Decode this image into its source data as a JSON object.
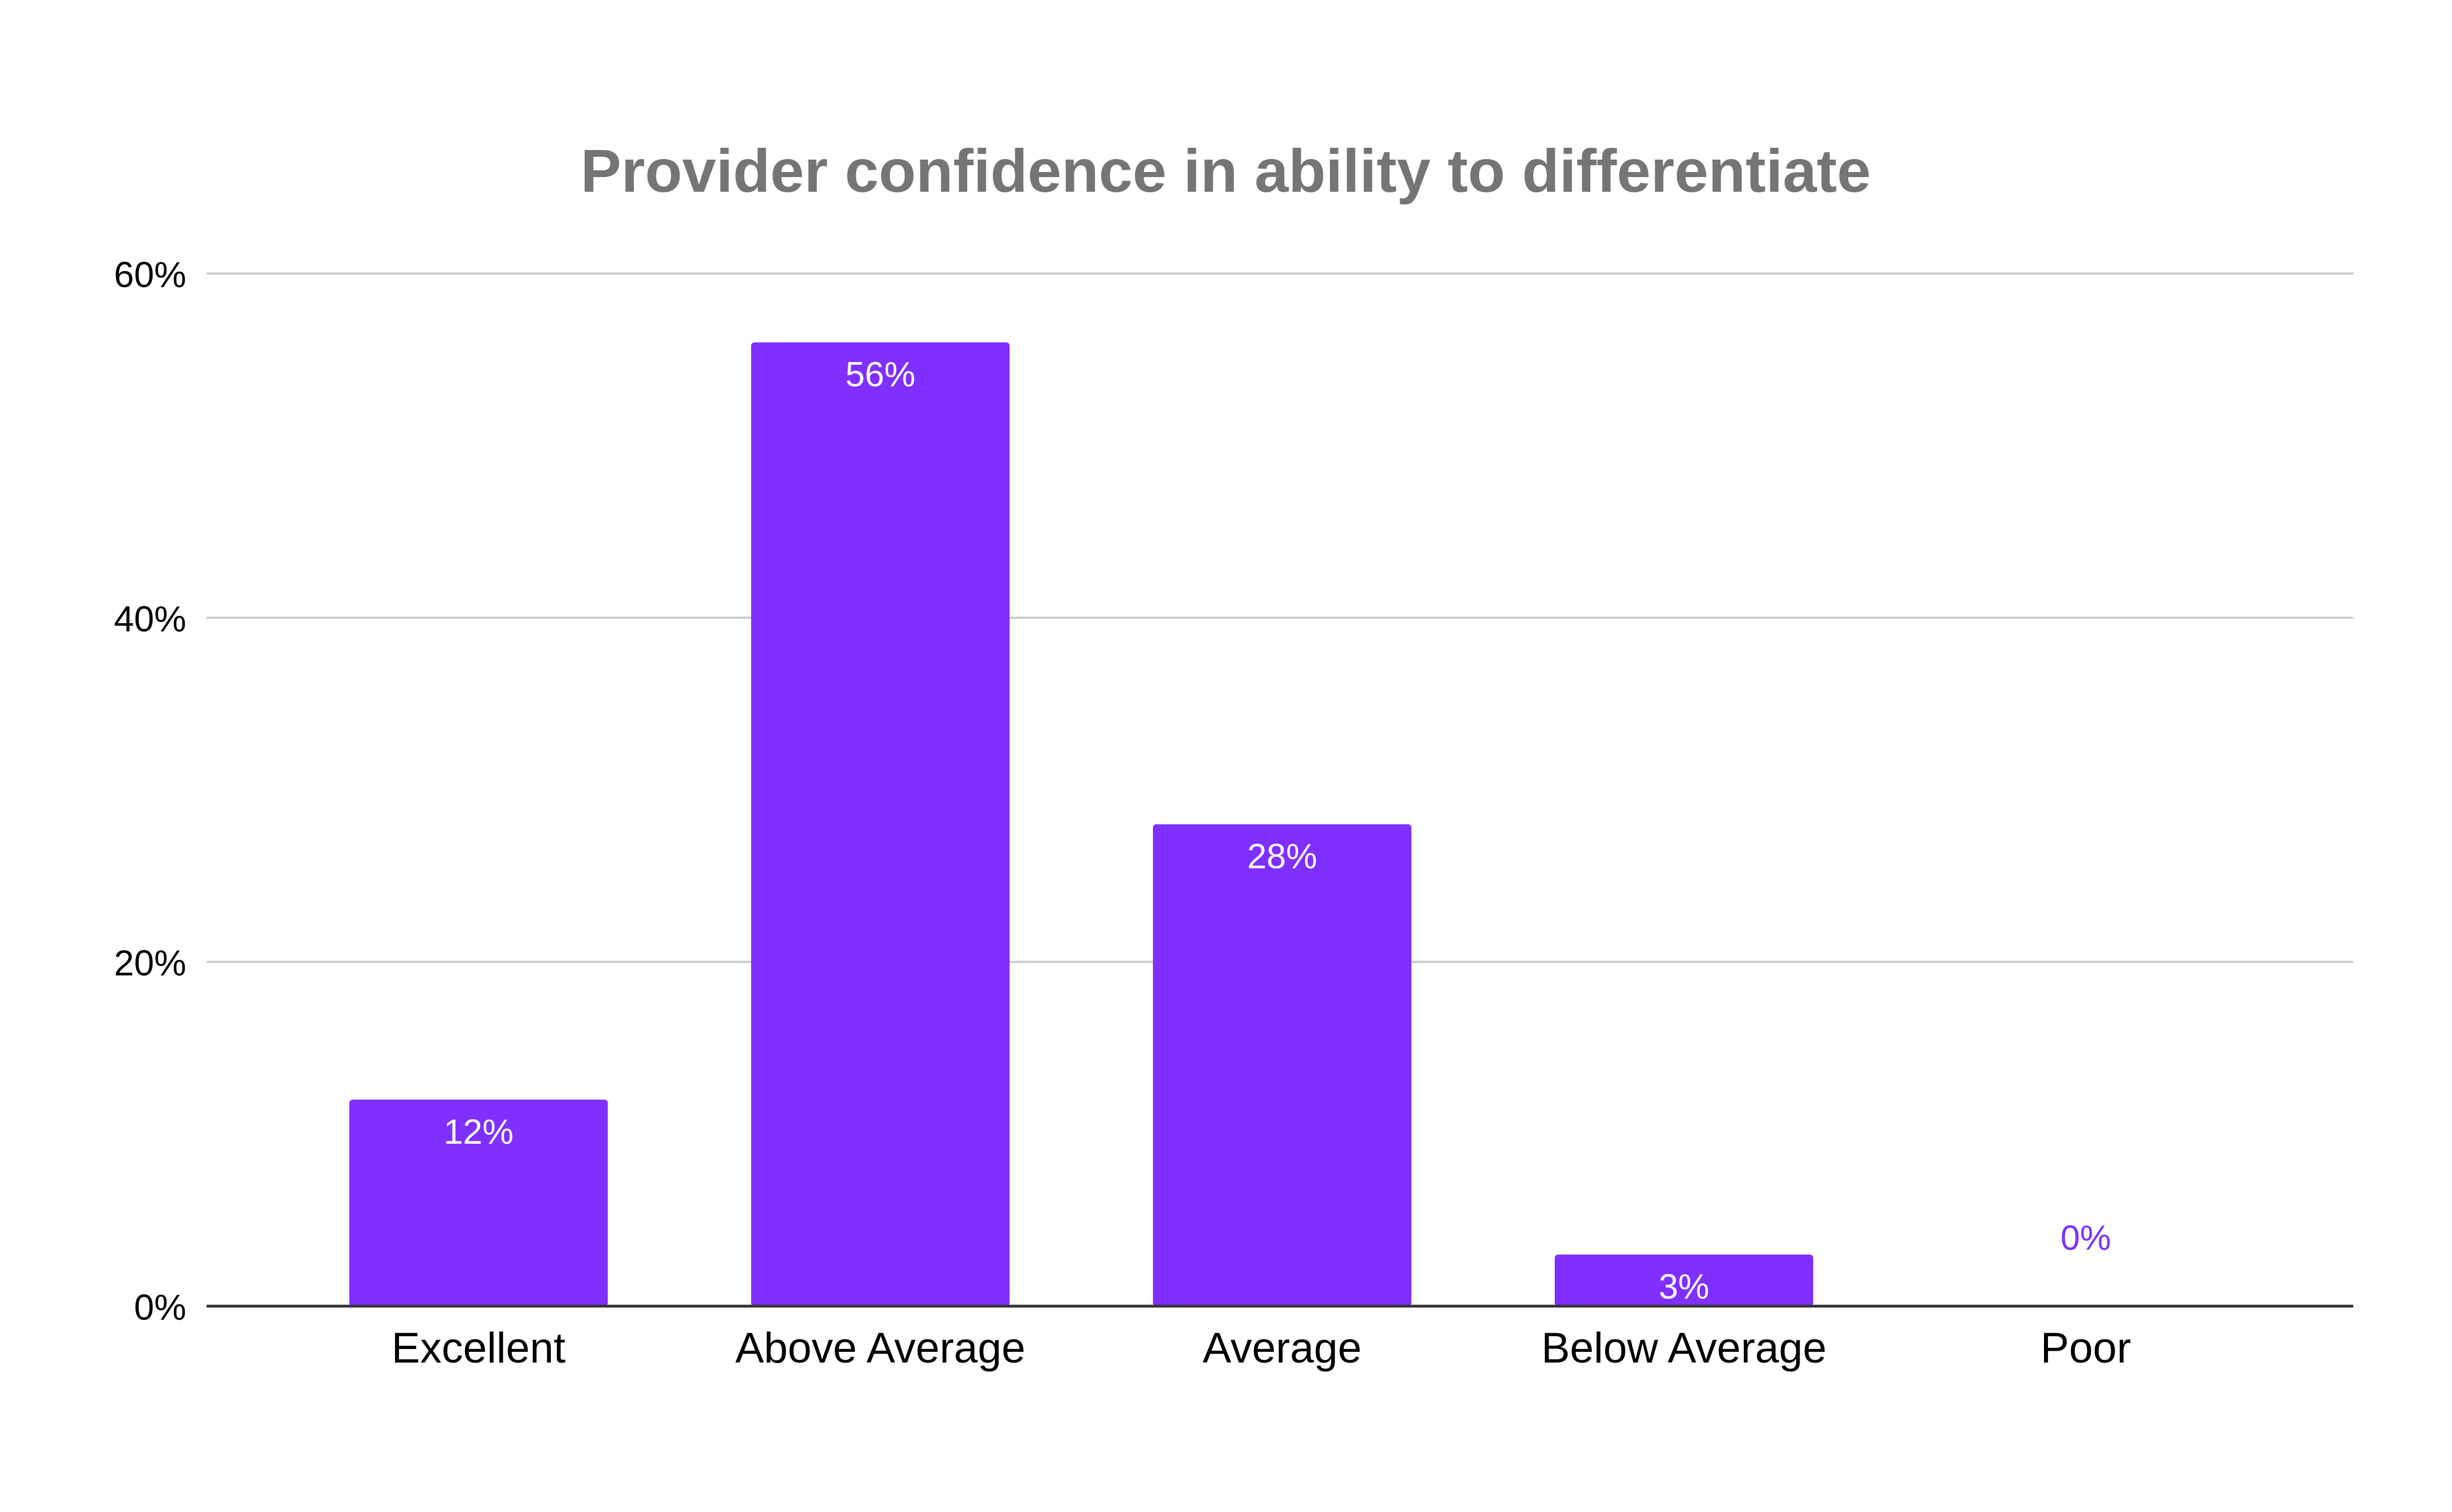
{
  "chart_data": {
    "type": "bar",
    "title": "Provider confidence in ability to differentiate",
    "xlabel": "",
    "ylabel": "",
    "categories": [
      "Excellent",
      "Above Average",
      "Average",
      "Below Average",
      "Poor"
    ],
    "values": [
      12,
      56,
      28,
      3,
      0
    ],
    "data_labels": [
      "12%",
      "56%",
      "28%",
      "3%",
      "0%"
    ],
    "ylim": [
      0,
      60
    ],
    "y_ticks": [
      0,
      20,
      40,
      60
    ],
    "y_tick_labels": [
      "0%",
      "20%",
      "40%",
      "60%"
    ],
    "grid": true,
    "legend": "none",
    "colors": {
      "bar": "#7f2fff",
      "title": "#757575",
      "gridline": "#cccccc",
      "axis": "#333333",
      "text": "#000000",
      "label_inside": "#ffffff"
    }
  }
}
